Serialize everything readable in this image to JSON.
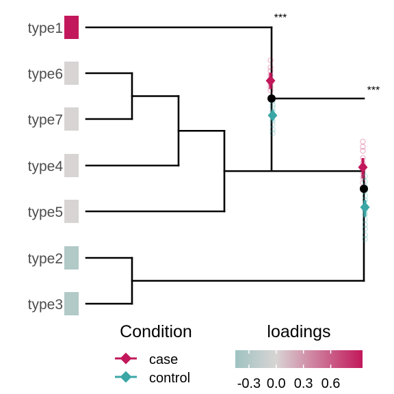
{
  "chart_data": {
    "type": "dendrogram",
    "tips": [
      {
        "label": "type1",
        "loading": 0.95
      },
      {
        "label": "type6",
        "loading": 0.0
      },
      {
        "label": "type7",
        "loading": 0.0
      },
      {
        "label": "type4",
        "loading": 0.0
      },
      {
        "label": "type5",
        "loading": 0.0
      },
      {
        "label": "type2",
        "loading": -0.3
      },
      {
        "label": "type3",
        "loading": -0.3
      }
    ],
    "tree": [
      "type1",
      [
        [
          [
            [
              "type6",
              "type7"
            ],
            "type4"
          ],
          "type5"
        ],
        [
          "type2",
          "type3"
        ]
      ]
    ],
    "tests": [
      {
        "node": "root",
        "significance": "***",
        "case": {
          "mean": 1.0,
          "ci_low": 0.55,
          "ci_high": 1.45,
          "points": [
            2.15,
            1.75,
            1.55,
            1.3,
            0.85,
            0.65,
            0.45
          ]
        },
        "control": {
          "mean": -0.95,
          "ci_low": -1.25,
          "ci_high": -0.65,
          "points": [
            -0.15,
            -0.35,
            -0.5,
            -0.7,
            -1.0,
            -1.25,
            -1.45,
            -1.75,
            -1.95
          ]
        }
      },
      {
        "node": "right-subtree",
        "significance": "***",
        "case": {
          "mean": 1.05,
          "ci_low": 0.5,
          "ci_high": 1.5,
          "points": [
            2.3,
            2.05,
            1.85,
            1.5,
            1.25,
            1.0,
            0.8,
            0.55,
            0.3,
            0.05,
            -0.05
          ]
        },
        "control": {
          "mean": -0.9,
          "ci_low": -1.35,
          "ci_high": -0.55,
          "points": [
            0.6,
            0.35,
            0.1,
            -0.1,
            -0.35,
            -0.55,
            -0.85,
            -1.05,
            -1.25,
            -1.5,
            -1.75,
            -1.95,
            -2.25,
            -2.45
          ]
        }
      }
    ],
    "legend": {
      "condition": {
        "title": "Condition",
        "entries": [
          {
            "label": "case",
            "color": "#c2185b"
          },
          {
            "label": "control",
            "color": "#3aa6a6"
          }
        ]
      },
      "loadings": {
        "title": "loadings",
        "ticks": [
          "-0.3",
          "0.0",
          "0.3",
          "0.6"
        ],
        "tick_values": [
          -0.3,
          0.0,
          0.3,
          0.6
        ],
        "range": [
          -0.45,
          0.95
        ],
        "colors": [
          "#9ec3c1",
          "#d8d4d4",
          "#c2185b"
        ]
      }
    }
  }
}
